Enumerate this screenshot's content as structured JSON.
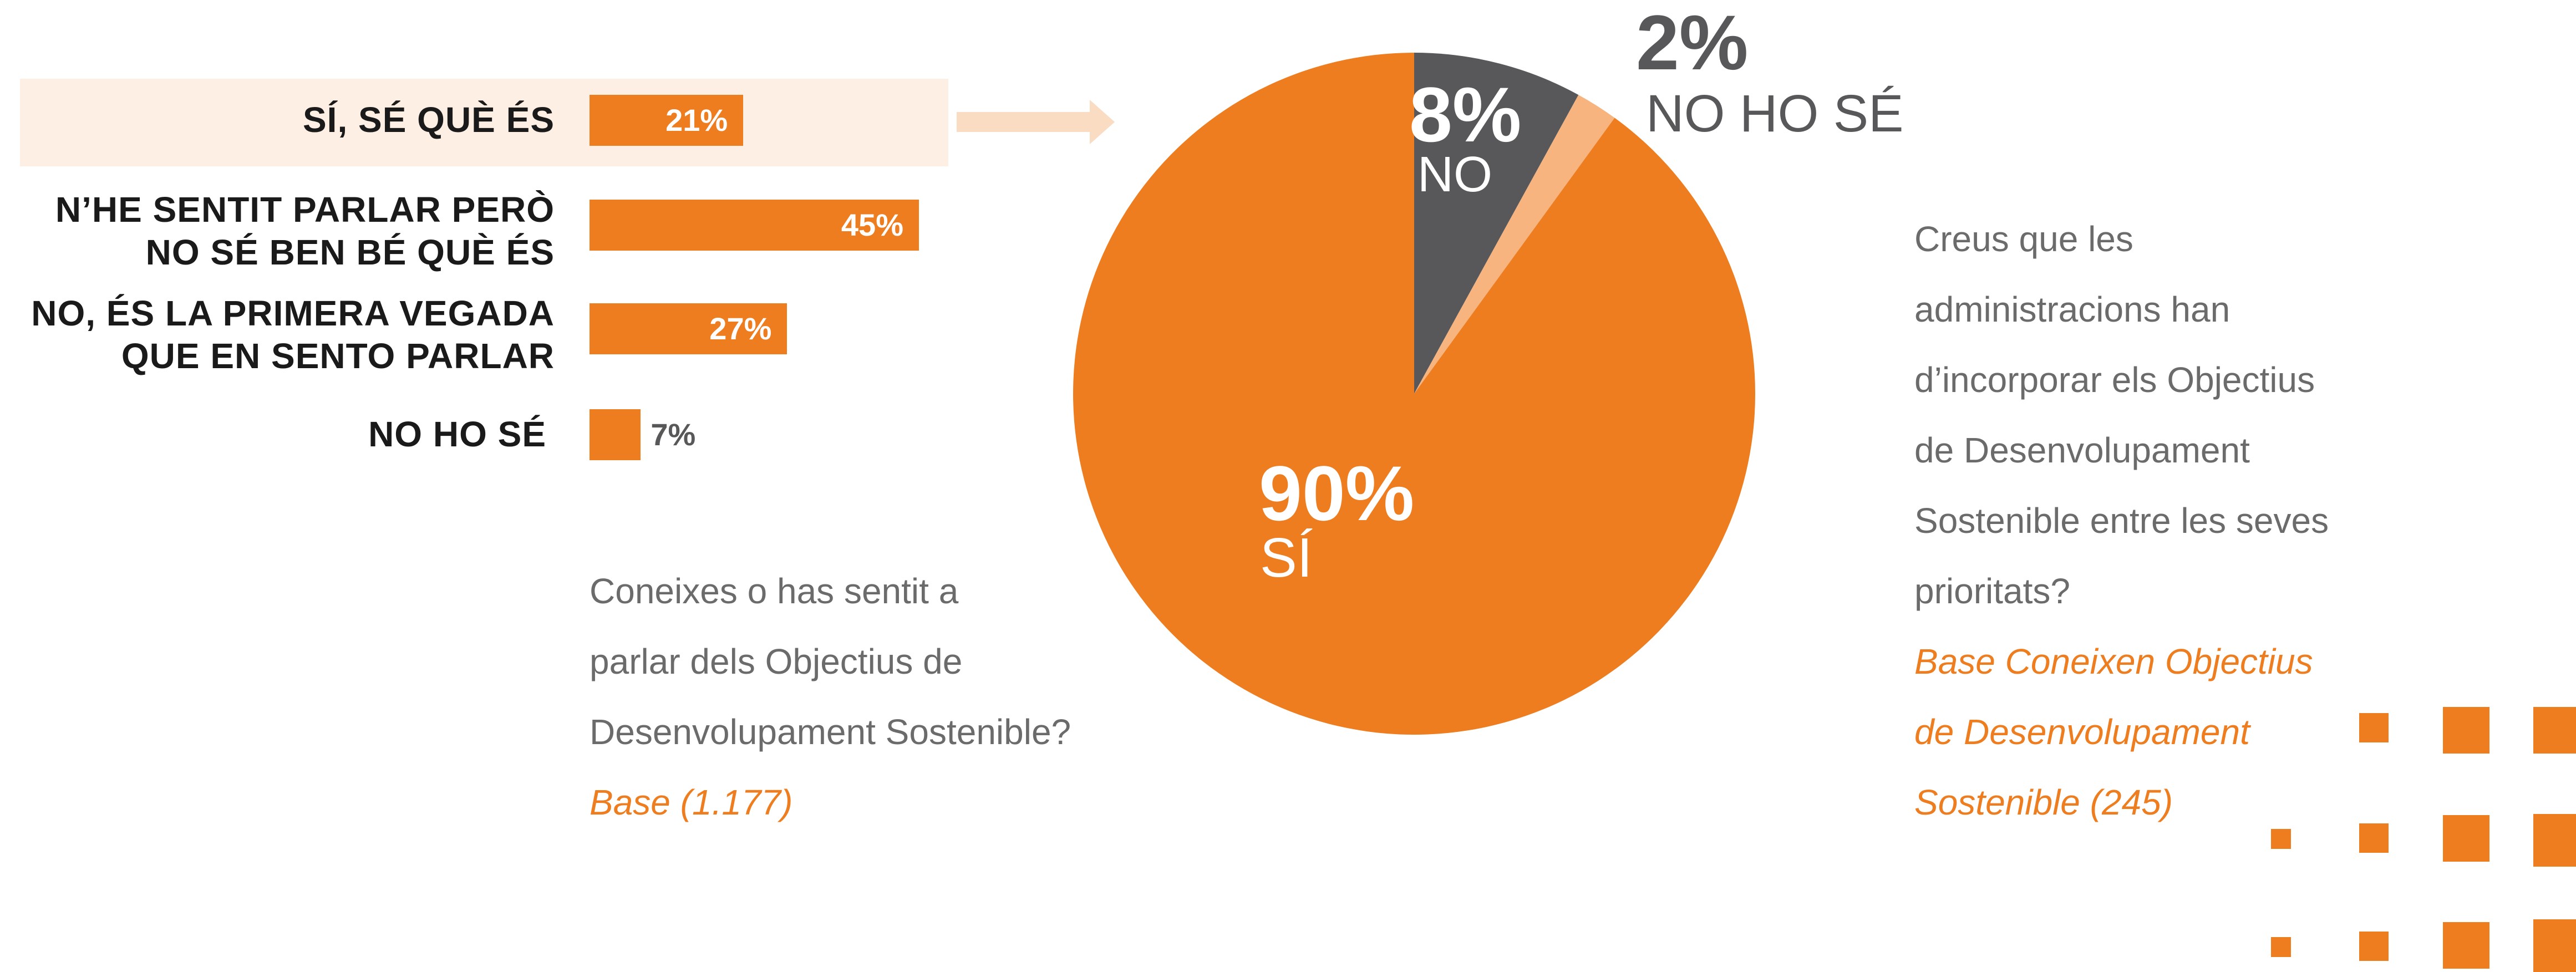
{
  "colors": {
    "orange": "#ee7d20",
    "dark_gray": "#58585a",
    "light_orange": "#f7b47f",
    "highlight_bg": "#fdefe3",
    "arrow": "#f9dcc2",
    "text_dark": "#1a1a1a",
    "text_gray": "#6b6b6b"
  },
  "chart_data": [
    {
      "type": "bar",
      "orientation": "horizontal",
      "categories": [
        "SÍ, SÉ QUÈ ÉS",
        "N’HE SENTIT PARLAR PERÒ NO SÉ BEN BÉ QUÈ ÉS",
        "NO, ÉS LA PRIMERA VEGADA QUE EN SENTO PARLAR",
        "NO HO SÉ"
      ],
      "values": [
        21,
        45,
        27,
        7
      ],
      "value_labels": [
        "21%",
        "45%",
        "27%",
        "7%"
      ],
      "highlighted_category": "SÍ, SÉ QUÈ ÉS",
      "question": [
        "Coneixes o has sentit a",
        "parlar dels Objectius de",
        "Desenvolupament Sostenible?"
      ],
      "base": "Base (1.177)"
    },
    {
      "type": "pie",
      "labels": [
        "SÍ",
        "NO",
        "NO HO SÉ"
      ],
      "values": [
        90,
        8,
        2
      ],
      "value_labels": [
        "90%",
        "8%",
        "2%"
      ],
      "colors": [
        "#ee7d20",
        "#58585a",
        "#f7b47f"
      ],
      "question": [
        "Creus que les",
        "administracions han",
        "d’incorporar els Objectius",
        "de Desenvolupament",
        "Sostenible entre les seves",
        "prioritats?"
      ],
      "base": [
        "Base Coneixen Objectius",
        "de Desenvolupament",
        "Sostenible  (245)"
      ]
    }
  ]
}
